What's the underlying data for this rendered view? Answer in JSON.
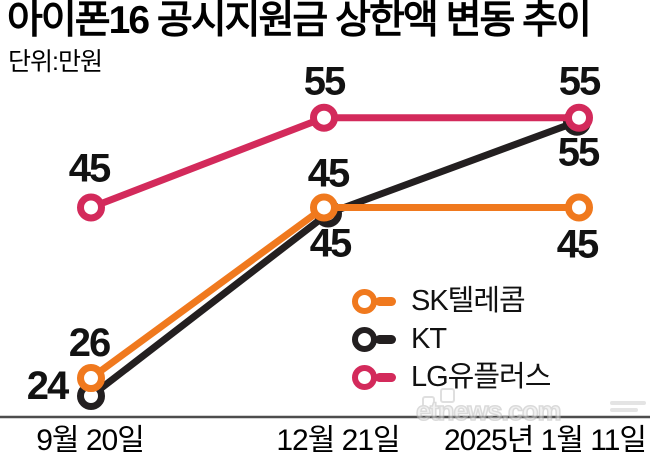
{
  "header": {
    "title": "아이폰16 공시지원금 상한액 변동 추이",
    "unit_label": "단위:만원"
  },
  "watermark": {
    "text": "etnews.com"
  },
  "chart_data": {
    "type": "line",
    "title": "아이폰16 공시지원금 상한액 변동 추이",
    "unit": "만원",
    "categories": [
      "9월 20일",
      "12월 21일",
      "2025년 1월 11일"
    ],
    "series": [
      {
        "name": "SK텔레콤",
        "color": "#F0791E",
        "values": [
          26,
          45,
          45
        ]
      },
      {
        "name": "KT",
        "color": "#231F20",
        "values": [
          24,
          45,
          55
        ]
      },
      {
        "name": "LG유플러스",
        "color": "#D32A5B",
        "values": [
          45,
          55,
          55
        ]
      }
    ],
    "ylim": [
      20,
      60
    ],
    "grid": false,
    "legend_position": "middle-right",
    "axis_color": "#4D4D4D",
    "data_label_color": "#121212"
  }
}
